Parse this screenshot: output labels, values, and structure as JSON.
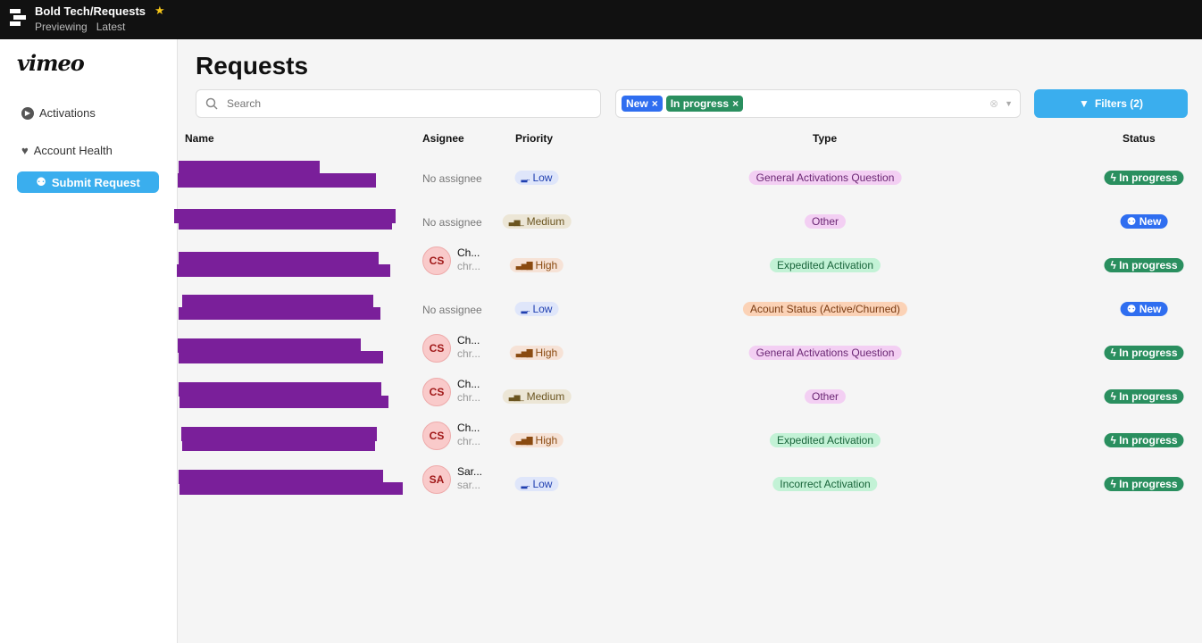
{
  "topbar": {
    "title": "Bold Tech/Requests",
    "sub": [
      "Previewing",
      "Latest"
    ]
  },
  "sidebar": {
    "brand": "vimeo",
    "items": [
      {
        "label": "Activations"
      },
      {
        "label": "Account Health"
      }
    ],
    "submit": "Submit Request"
  },
  "main": {
    "title": "Requests",
    "search_placeholder": "Search",
    "chips": [
      {
        "label": "New",
        "color": "#2f6ef0"
      },
      {
        "label": "In progress",
        "color": "#2a8f5f"
      }
    ],
    "filters": "Filters (2)",
    "headers": {
      "name": "Name",
      "assignee": "Asignee",
      "priority": "Priority",
      "type": "Type",
      "status": "Status"
    },
    "rows": [
      {
        "assignee": null,
        "priority": "Low",
        "type": "General Activations Question",
        "status": "In progress"
      },
      {
        "assignee": null,
        "priority": "Medium",
        "type": "Other",
        "status": "New"
      },
      {
        "assignee": {
          "initials": "CS",
          "name": "Ch...",
          "email": "chr..."
        },
        "priority": "High",
        "type": "Expedited Activation",
        "status": "In progress"
      },
      {
        "assignee": null,
        "priority": "Low",
        "type": "Acount Status (Active/Churned)",
        "status": "New"
      },
      {
        "assignee": {
          "initials": "CS",
          "name": "Ch...",
          "email": "chr..."
        },
        "priority": "High",
        "type": "General Activations Question",
        "status": "In progress"
      },
      {
        "assignee": {
          "initials": "CS",
          "name": "Ch...",
          "email": "chr..."
        },
        "priority": "Medium",
        "type": "Other",
        "status": "In progress"
      },
      {
        "assignee": {
          "initials": "CS",
          "name": "Ch...",
          "email": "chr..."
        },
        "priority": "High",
        "type": "Expedited Activation",
        "status": "In progress"
      },
      {
        "assignee": {
          "initials": "SA",
          "name": "Sar...",
          "email": "sar..."
        },
        "priority": "Low",
        "type": "Incorrect Activation",
        "status": "In progress"
      }
    ],
    "no_assignee": "No assignee"
  }
}
